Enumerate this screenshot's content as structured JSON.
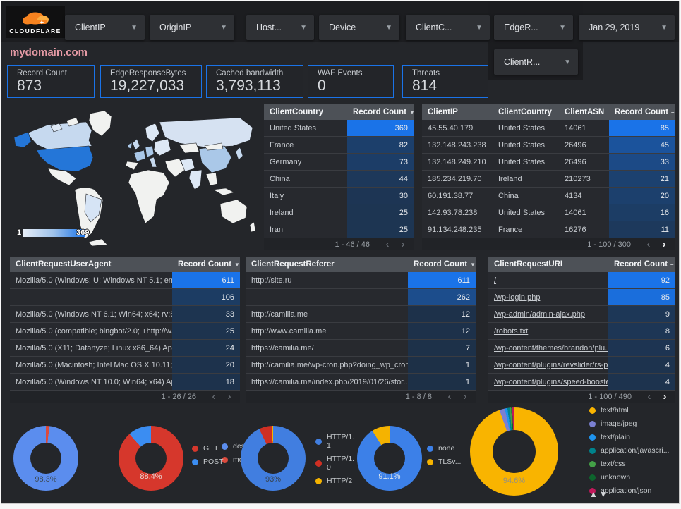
{
  "header": {
    "logo_text": "CLOUDFLARE",
    "filters": [
      "ClientIP",
      "OriginIP",
      "Host...",
      "Device",
      "ClientC...",
      "EdgeR..."
    ],
    "date": "Jan 29, 2019",
    "filter2": "ClientR...",
    "title": "mydomain.com"
  },
  "scorecards": [
    {
      "label": "Record Count",
      "value": "873"
    },
    {
      "label": "EdgeResponseBytes",
      "value": "19,227,033"
    },
    {
      "label": "Cached bandwidth",
      "value": "3,793,113"
    },
    {
      "label": "WAF Events",
      "value": "0"
    },
    {
      "label": "Threats",
      "value": "814"
    }
  ],
  "map": {
    "legend_min": "1",
    "legend_max": "369"
  },
  "tables": {
    "country": {
      "columns": [
        "ClientCountry",
        "Record Count"
      ],
      "sort": "▼",
      "max": 369,
      "rows": [
        [
          "United States",
          369
        ],
        [
          "France",
          82
        ],
        [
          "Germany",
          73
        ],
        [
          "China",
          44
        ],
        [
          "Italy",
          30
        ],
        [
          "Ireland",
          25
        ],
        [
          "Iran",
          25
        ]
      ],
      "pagination": "1 - 46 / 46",
      "prev_active": false,
      "next_active": false
    },
    "client_ip": {
      "columns": [
        "ClientIP",
        "ClientCountry",
        "ClientASN",
        "Record Count"
      ],
      "sort": "–",
      "max": 85,
      "rows": [
        [
          "45.55.40.179",
          "United States",
          "14061",
          85
        ],
        [
          "132.148.243.238",
          "United States",
          "26496",
          45
        ],
        [
          "132.148.249.210",
          "United States",
          "26496",
          33
        ],
        [
          "185.234.219.70",
          "Ireland",
          "210273",
          21
        ],
        [
          "60.191.38.77",
          "China",
          "4134",
          20
        ],
        [
          "142.93.78.238",
          "United States",
          "14061",
          16
        ],
        [
          "91.134.248.235",
          "France",
          "16276",
          11
        ]
      ],
      "pagination": "1 - 100 / 300",
      "prev_active": false,
      "next_active": true
    },
    "user_agent": {
      "columns": [
        "ClientRequestUserAgent",
        "Record Count"
      ],
      "sort": "▼",
      "max": 611,
      "rows": [
        [
          "Mozilla/5.0 (Windows; U; Windows NT 5.1; en-U...",
          611
        ],
        [
          "",
          106
        ],
        [
          "Mozilla/5.0 (Windows NT 6.1; Win64; x64; rv:64...",
          33
        ],
        [
          "Mozilla/5.0 (compatible; bingbot/2.0; +http://w...",
          25
        ],
        [
          "Mozilla/5.0 (X11; Datanyze; Linux x86_64) Appl...",
          24
        ],
        [
          "Mozilla/5.0 (Macintosh; Intel Mac OS X 10.11; r...",
          20
        ],
        [
          "Mozilla/5.0 (Windows NT 10.0; Win64; x64) App...",
          18
        ]
      ],
      "pagination": "1 - 26 / 26",
      "prev_active": false,
      "next_active": false
    },
    "referer": {
      "columns": [
        "ClientRequestReferer",
        "Record Count"
      ],
      "sort": "▼",
      "max": 611,
      "rows": [
        [
          "http://site.ru",
          611
        ],
        [
          "",
          262
        ],
        [
          "http://camilia.me",
          12
        ],
        [
          "http://www.camilia.me",
          12
        ],
        [
          "https://camilia.me/",
          7
        ],
        [
          "http://camilia.me/wp-cron.php?doing_wp_cron...",
          1
        ],
        [
          "https://camilia.me/index.php/2019/01/26/stor...",
          1
        ]
      ],
      "pagination": "1 - 8 / 8",
      "prev_active": false,
      "next_active": false
    },
    "uri": {
      "columns": [
        "ClientRequestURI",
        "Record Count"
      ],
      "sort": "–",
      "max": 92,
      "links": true,
      "rows": [
        [
          "/",
          92
        ],
        [
          "/wp-login.php",
          85
        ],
        [
          "/wp-admin/admin-ajax.php",
          9
        ],
        [
          "/robots.txt",
          8
        ],
        [
          "/wp-content/themes/brandon/plu...",
          6
        ],
        [
          "/wp-content/plugins/revslider/rs-p...",
          4
        ],
        [
          "/wp-content/plugins/speed-booste...",
          4
        ]
      ],
      "pagination": "1 - 100 / 490",
      "prev_active": false,
      "next_active": true
    }
  },
  "chart_data": [
    {
      "type": "geo",
      "title": "ClientCountry map",
      "metric": "Record Count",
      "min": 1,
      "max": 369,
      "color_range": [
        "#e8eef7",
        "#1a73e8"
      ],
      "regions": [
        [
          "United States",
          369
        ],
        [
          "France",
          82
        ],
        [
          "Germany",
          73
        ],
        [
          "China",
          44
        ],
        [
          "Italy",
          30
        ],
        [
          "Ireland",
          25
        ],
        [
          "Iran",
          25
        ]
      ]
    },
    {
      "type": "pie",
      "name": "device-type",
      "center_label": "98.3%",
      "label_color": "#3d4a56",
      "slices": [
        {
          "name": "mobile",
          "pct": 1.7,
          "color": "#dc4b3e"
        },
        {
          "name": "deskt...",
          "pct": 98.3,
          "color": "#5b8dee"
        }
      ],
      "legend": [
        {
          "label": "deskt...",
          "color": "#5b8dee"
        },
        {
          "label": "mobile",
          "color": "#dc4b3e"
        }
      ]
    },
    {
      "type": "pie",
      "name": "request-method",
      "center_label": "88.4%",
      "label_color": "#e8d9d6",
      "slices": [
        {
          "name": "GET",
          "pct": 88.4,
          "color": "#d6372c"
        },
        {
          "name": "POST",
          "pct": 11.6,
          "color": "#3b8df2"
        }
      ],
      "legend": [
        {
          "label": "GET",
          "color": "#d6372c"
        },
        {
          "label": "POST",
          "color": "#3b8df2"
        }
      ]
    },
    {
      "type": "pie",
      "name": "http-protocol",
      "center_label": "93%",
      "label_color": "#37424c",
      "slices": [
        {
          "name": "HTTP/1.1",
          "pct": 93,
          "color": "#417ee0"
        },
        {
          "name": "HTTP/1.0",
          "pct": 6.5,
          "color": "#cf2f23"
        },
        {
          "name": "HTTP/2",
          "pct": 0.5,
          "color": "#f5b300"
        }
      ],
      "legend": [
        {
          "label": "HTTP/1.1",
          "color": "#417ee0"
        },
        {
          "label": "HTTP/1.0",
          "color": "#cf2f23"
        },
        {
          "label": "HTTP/2",
          "color": "#f5b300"
        }
      ]
    },
    {
      "type": "pie",
      "name": "tls-version",
      "center_label": "91.1%",
      "label_color": "#dfe5ea",
      "slices": [
        {
          "name": "none",
          "pct": 91.1,
          "color": "#3c80e8"
        },
        {
          "name": "TLSv...",
          "pct": 8.9,
          "color": "#f5b300"
        }
      ],
      "legend": [
        {
          "label": "none",
          "color": "#3c80e8"
        },
        {
          "label": "TLSv...",
          "color": "#f5b300"
        }
      ]
    },
    {
      "type": "pie",
      "name": "content-type",
      "center_label": "94.6%",
      "label_color": "#95907f",
      "slices": [
        {
          "name": "text/html",
          "pct": 94.6,
          "color": "#f9b400"
        },
        {
          "name": "image/jpeg",
          "pct": 2.0,
          "color": "#7a80d2"
        },
        {
          "name": "text/plain",
          "pct": 0.9,
          "color": "#1e93ee"
        },
        {
          "name": "application/javascri...",
          "pct": 0.8,
          "color": "#00838c"
        },
        {
          "name": "text/css",
          "pct": 0.6,
          "color": "#43a047"
        },
        {
          "name": "unknown",
          "pct": 0.4,
          "color": "#0d652d"
        },
        {
          "name": "application/json",
          "pct": 0.7,
          "color": "#c2185b"
        }
      ],
      "legend": [
        {
          "label": "text/html",
          "color": "#f9b400"
        },
        {
          "label": "image/jpeg",
          "color": "#7a80d2"
        },
        {
          "label": "text/plain",
          "color": "#1e93ee"
        },
        {
          "label": "application/javascri...",
          "color": "#00838c"
        },
        {
          "label": "text/css",
          "color": "#43a047"
        },
        {
          "label": "unknown",
          "color": "#0d652d"
        },
        {
          "label": "application/json",
          "color": "#c2185b"
        }
      ],
      "sort_arrows": "▲▼"
    }
  ],
  "pagination_icons": {
    "prev": "‹",
    "next": "›"
  }
}
